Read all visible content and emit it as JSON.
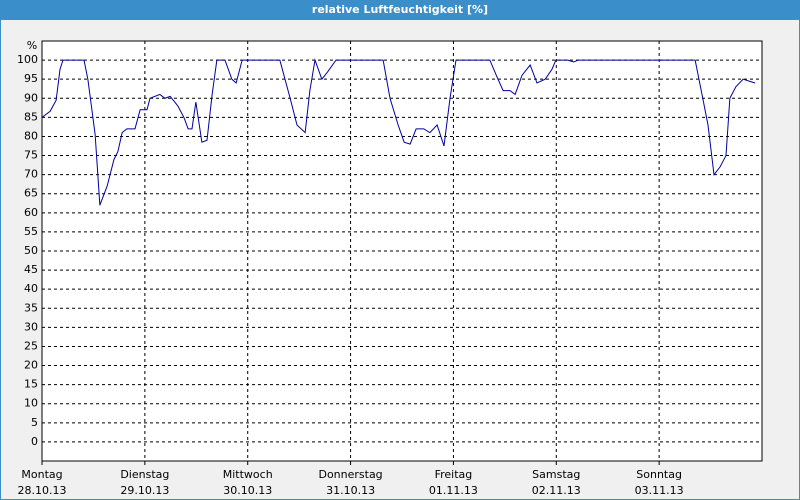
{
  "chart_data": {
    "type": "line",
    "title": "relative Luftfeuchtigkeit [%]",
    "y_label": "%",
    "x": [
      0,
      1.9,
      3.3,
      4.2,
      4.9,
      9.8,
      10.7,
      12.4,
      13.5,
      15.2,
      16.8,
      17.7,
      18.7,
      19.8,
      21.7,
      22.9,
      24.5,
      25.2,
      27.5,
      28.7,
      29.9,
      31.7,
      33.1,
      34.1,
      35,
      35.9,
      37.3,
      38.5,
      39.7,
      40.8,
      42.7,
      44.3,
      45.3,
      46.7,
      55.5,
      57.9,
      59.5,
      61.4,
      62.5,
      63.7,
      65.3,
      66.7,
      68.6,
      79.6,
      81.2,
      83.1,
      84.5,
      85.9,
      87.3,
      89.1,
      90.5,
      92.2,
      93.8,
      95.2,
      96.6,
      104.5,
      106.2,
      107.6,
      109.2,
      110.4,
      112,
      113.9,
      115.5,
      117.4,
      119,
      119.9,
      122.7,
      124.1,
      125.1,
      152.4,
      154,
      155.4,
      156.8,
      158.2,
      159.6,
      160.5,
      161.9,
      163.6,
      165,
      166.4
    ],
    "series": [
      {
        "name": "relative Luftfeuchtigkeit",
        "color": "#0000a0",
        "values": [
          85,
          86.6,
          89.5,
          97.6,
          100,
          100,
          95,
          80.5,
          62,
          67,
          74,
          76,
          81,
          82,
          82,
          87,
          87,
          90,
          91,
          90,
          90.5,
          88,
          85,
          82,
          82,
          89,
          78.5,
          79,
          91,
          100,
          100,
          95,
          94,
          100,
          100,
          90,
          83,
          81,
          92,
          100,
          95,
          97,
          100,
          100,
          90,
          83,
          78.5,
          78,
          82,
          82,
          81,
          83,
          77.5,
          90,
          100,
          100,
          95.5,
          92,
          92,
          91,
          96,
          98.7,
          94,
          95,
          97.6,
          100,
          100,
          99.5,
          100,
          100,
          91,
          83,
          70,
          72,
          75,
          90,
          93,
          95,
          94.5,
          94
        ]
      }
    ],
    "xlim": [
      0,
      168
    ],
    "xticks": [
      {
        "value": 0,
        "label": "Montag",
        "date": "28.10.13"
      },
      {
        "value": 24,
        "label": "Dienstag",
        "date": "29.10.13"
      },
      {
        "value": 48,
        "label": "Mittwoch",
        "date": "30.10.13"
      },
      {
        "value": 72,
        "label": "Donnerstag",
        "date": "31.10.13"
      },
      {
        "value": 96,
        "label": "Freitag",
        "date": "01.11.13"
      },
      {
        "value": 120,
        "label": "Samstag",
        "date": "02.11.13"
      },
      {
        "value": 144,
        "label": "Sonntag",
        "date": "03.11.13"
      }
    ],
    "ylim": [
      -5,
      105
    ],
    "yticks": [
      0,
      5,
      10,
      15,
      20,
      25,
      30,
      35,
      40,
      45,
      50,
      55,
      60,
      65,
      70,
      75,
      80,
      85,
      90,
      95,
      100
    ],
    "grid": true
  }
}
